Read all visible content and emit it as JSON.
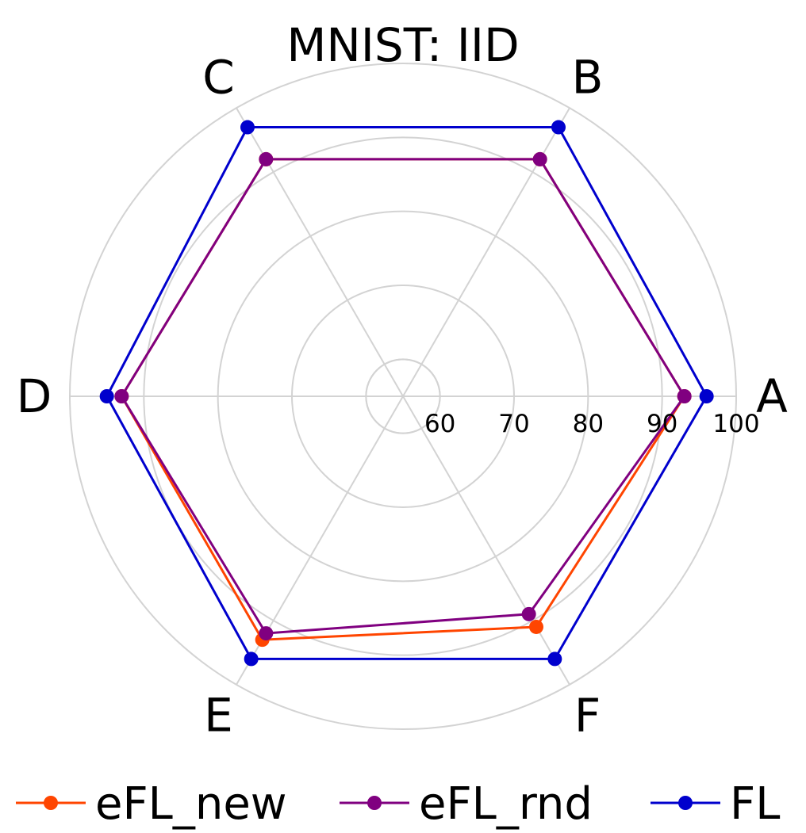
{
  "chart_data": {
    "type": "radar",
    "title": "MNIST: IID",
    "categories": [
      "A",
      "B",
      "C",
      "D",
      "E",
      "F"
    ],
    "radial_range": [
      55,
      100
    ],
    "radial_ticks": [
      60,
      70,
      80,
      90,
      100
    ],
    "series": [
      {
        "name": "eFL_new",
        "color": "#FF4500",
        "values": [
          93,
          92,
          92,
          93,
          93,
          91
        ]
      },
      {
        "name": "eFL_rnd",
        "color": "#800080",
        "values": [
          93,
          92,
          92,
          93,
          92,
          89
        ]
      },
      {
        "name": "FL",
        "color": "#0000CD",
        "values": [
          96,
          97,
          97,
          95,
          96,
          96
        ]
      }
    ],
    "grid": true,
    "legend_position": "bottom"
  }
}
